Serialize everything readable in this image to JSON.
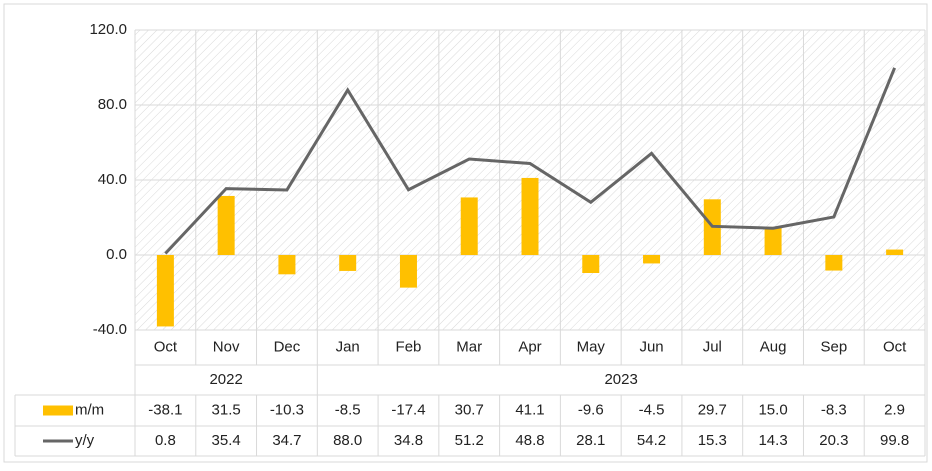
{
  "chart_data": {
    "type": "bar_line",
    "categories": [
      "Oct",
      "Nov",
      "Dec",
      "Jan",
      "Feb",
      "Mar",
      "Apr",
      "May",
      "Jun",
      "Jul",
      "Aug",
      "Sep",
      "Oct"
    ],
    "years": [
      "2022",
      null,
      null,
      "2023",
      null,
      null,
      null,
      null,
      null,
      null,
      null,
      null,
      null
    ],
    "series": [
      {
        "name": "m/m",
        "type": "bar",
        "color": "#ffc000",
        "values": [
          -38.1,
          31.5,
          -10.3,
          -8.5,
          -17.4,
          30.7,
          41.1,
          -9.6,
          -4.5,
          29.7,
          15.0,
          -8.3,
          2.9
        ],
        "value_labels": [
          "-38.1",
          "31.5",
          "-10.3",
          "-8.5",
          "-17.4",
          "30.7",
          "41.1",
          "-9.6",
          "-4.5",
          "29.7",
          "15.0",
          "-8.3",
          "2.9"
        ]
      },
      {
        "name": "y/y",
        "type": "line",
        "color": "#666666",
        "values": [
          0.8,
          35.4,
          34.7,
          88.0,
          34.8,
          51.2,
          48.8,
          28.1,
          54.2,
          15.3,
          14.3,
          20.3,
          99.8
        ],
        "value_labels": [
          "0.8",
          "35.4",
          "34.7",
          "88.0",
          "34.8",
          "51.2",
          "48.8",
          "28.1",
          "54.2",
          "15.3",
          "14.3",
          "20.3",
          "99.8"
        ]
      }
    ],
    "ylim": [
      -40,
      120
    ],
    "yticks": [
      {
        "value": -40,
        "label": "-40.0"
      },
      {
        "value": 0,
        "label": "0.0"
      },
      {
        "value": 40,
        "label": "40.0"
      },
      {
        "value": 80,
        "label": "80.0"
      },
      {
        "value": 120,
        "label": "120.0"
      }
    ],
    "grid": true
  }
}
